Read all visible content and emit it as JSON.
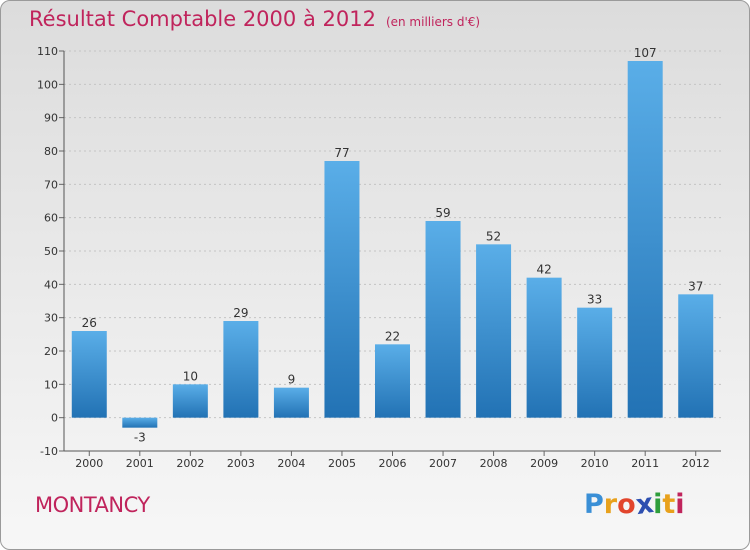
{
  "chart_title": "Résultat Comptable 2000 à 2012",
  "chart_unit": "(en milliers d'€)",
  "commune": "MONTANCY",
  "logo": {
    "letters": [
      "P",
      "r",
      "o",
      "x",
      "i",
      "t",
      "i"
    ],
    "colors": [
      "#3a8fd6",
      "#e8a11c",
      "#e2452c",
      "#2d4fb0",
      "#2f9e3c",
      "#e8a11c",
      "#c0245c"
    ]
  },
  "colors": {
    "title": "#c0245c",
    "bar_light": "#5aaee8",
    "bar_dark": "#2272b4"
  },
  "chart_data": {
    "type": "bar",
    "title": "Résultat Comptable 2000 à 2012",
    "subtitle": "(en milliers d'€)",
    "xlabel": "",
    "ylabel": "",
    "categories": [
      "2000",
      "2001",
      "2002",
      "2003",
      "2004",
      "2005",
      "2006",
      "2007",
      "2008",
      "2009",
      "2010",
      "2011",
      "2012"
    ],
    "values": [
      26,
      -3,
      10,
      29,
      9,
      77,
      22,
      59,
      52,
      42,
      33,
      107,
      37
    ],
    "ylim": [
      -10,
      110
    ],
    "yticks": [
      -10,
      0,
      10,
      20,
      30,
      40,
      50,
      60,
      70,
      80,
      90,
      100,
      110
    ],
    "grid": true
  }
}
